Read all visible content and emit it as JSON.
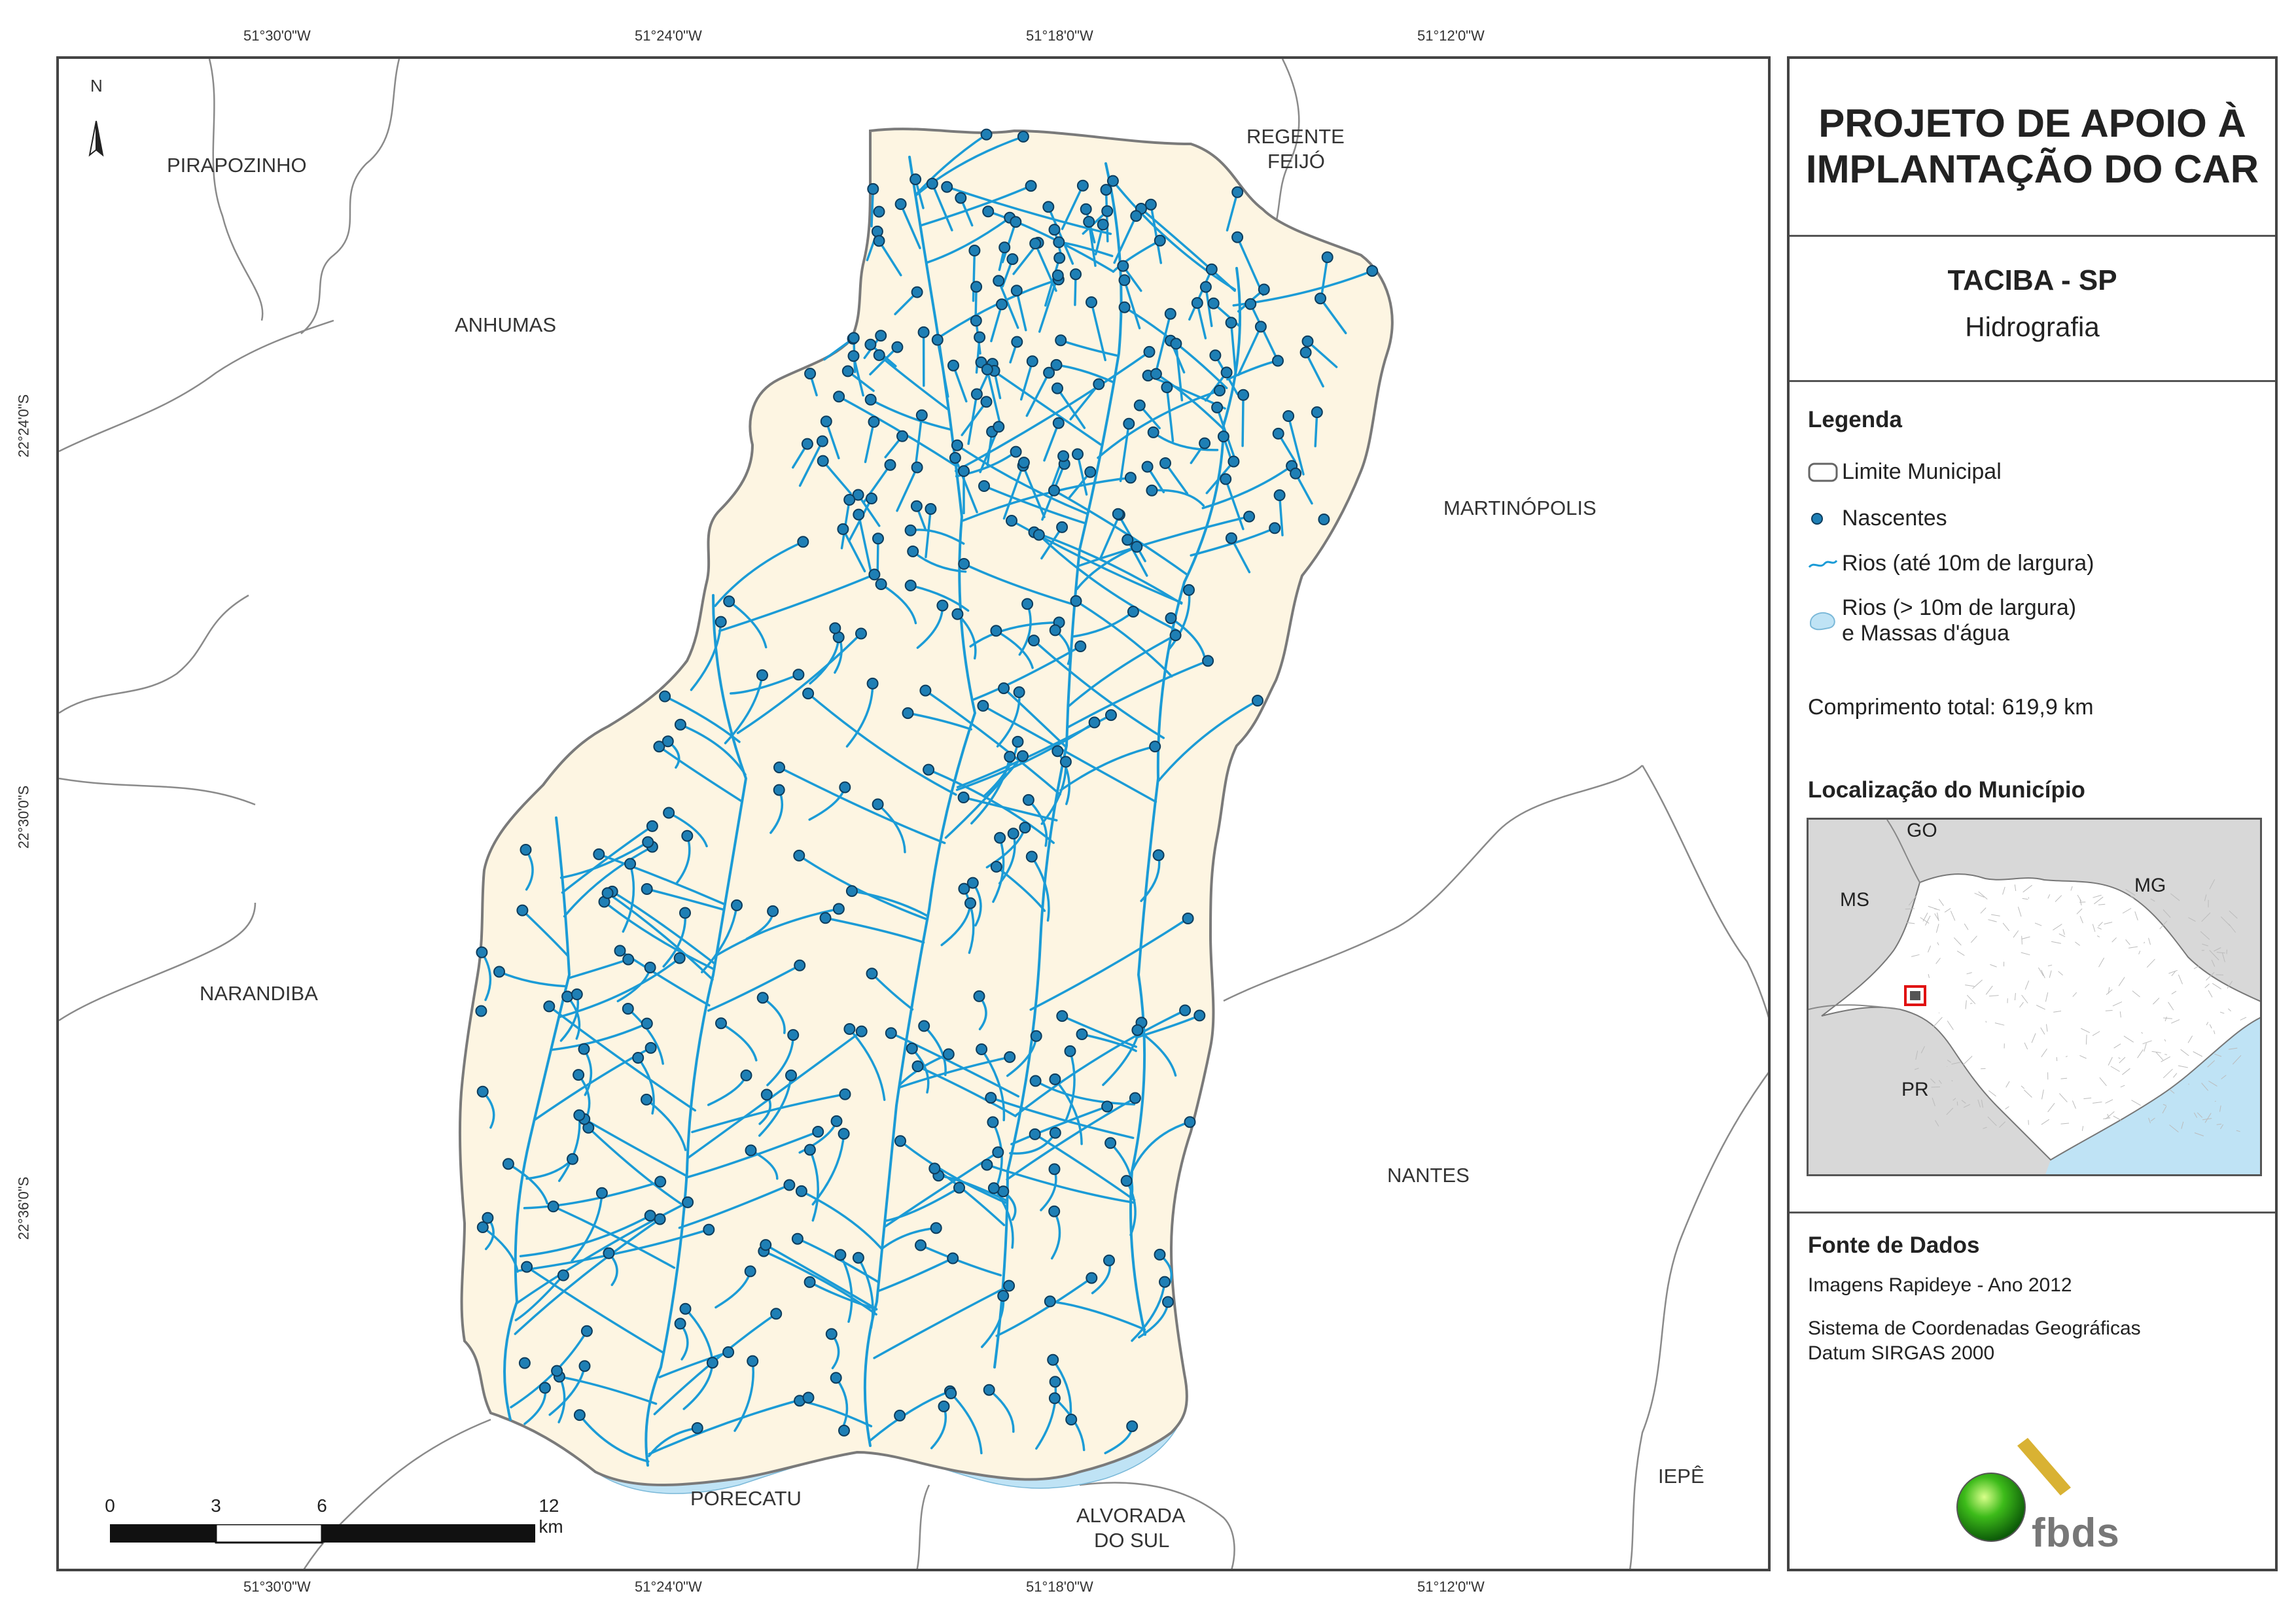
{
  "title": "PROJETO DE APOIO À IMPLANTAÇÃO DO CAR",
  "title_lines": [
    "PROJETO DE APOIO À",
    "IMPLANTAÇÃO DO CAR"
  ],
  "municipality": "TACIBA - SP",
  "theme": "Hidrografia",
  "coords": {
    "top": [
      "51°30'0\"W",
      "51°24'0\"W",
      "51°18'0\"W",
      "51°12'0\"W"
    ],
    "bottom": [
      "51°30'0\"W",
      "51°24'0\"W",
      "51°18'0\"W",
      "51°12'0\"W"
    ],
    "left": [
      "22°24'0\"S",
      "22°30'0\"S",
      "22°36'0\"S"
    ],
    "right": [
      "22°24'0\"S",
      "22°30'0\"S",
      "22°36'0\"S"
    ]
  },
  "north_label": "N",
  "places": {
    "pirapozinho": "PIRAPOZINHO",
    "regente_feijo": [
      "REGENTE",
      "FEIJÓ"
    ],
    "anhumas": "ANHUMAS",
    "martinopolis": "MARTINÓPOLIS",
    "narandiba": "NARANDIBA",
    "nantes": "NANTES",
    "porecatu": "PORECATU",
    "alvorada_do_sul": [
      "ALVORADA",
      "DO SUL"
    ],
    "iepe": "IEPÊ"
  },
  "scale": {
    "labels": [
      "0",
      "3",
      "6",
      "12 km"
    ]
  },
  "legend": {
    "heading": "Legenda",
    "items": [
      {
        "label": "Limite Municipal",
        "icon": "municipal-boundary-symbol"
      },
      {
        "label": "Nascentes",
        "icon": "spring-dot-symbol"
      },
      {
        "label": "Rios (até 10m de largura)",
        "icon": "river-line-symbol"
      },
      {
        "label": "Rios (> 10m de largura)",
        "label2": "e Massas d'água",
        "icon": "water-body-symbol"
      }
    ],
    "total_length": "Comprimento total: 619,9 km"
  },
  "location": {
    "heading": "Localização do Município",
    "labels": {
      "go": "GO",
      "ms": "MS",
      "mg": "MG",
      "pr": "PR"
    }
  },
  "source": {
    "heading": "Fonte de Dados",
    "line1": "Imagens Rapideye - Ano 2012",
    "line2": "Sistema de Coordenadas Geográficas",
    "line3": "Datum SIRGAS 2000"
  },
  "logo_text": "fbds",
  "colors": {
    "municipality_fill": "#fdf5e2",
    "boundary": "#7a7a7a",
    "river": "#1b9bd6",
    "spring_fill": "#1e7fb5",
    "spring_stroke": "#0d3c5c",
    "water_body": "#bfe3f5",
    "inset_bg": "#d8d8d8",
    "inset_sea": "#bfe3f5",
    "highlight": "#e01010"
  }
}
